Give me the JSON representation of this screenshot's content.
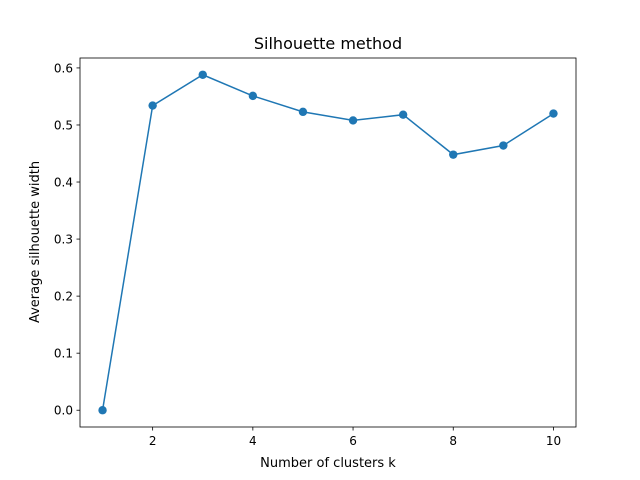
{
  "chart_data": {
    "type": "line",
    "title": "Silhouette method",
    "xlabel": "Number of clusters k",
    "ylabel": "Average silhouette width",
    "x": [
      1,
      2,
      3,
      4,
      5,
      6,
      7,
      8,
      9,
      10
    ],
    "series": [
      {
        "values": [
          0.0,
          0.534,
          0.588,
          0.551,
          0.523,
          0.508,
          0.518,
          0.448,
          0.464,
          0.52
        ],
        "color": "#1f77b4",
        "marker": "circle"
      }
    ],
    "xlim": [
      0.55,
      10.45
    ],
    "ylim": [
      -0.0294,
      0.6174
    ],
    "xticks": [
      2,
      4,
      6,
      8,
      10
    ],
    "yticks": [
      0.0,
      0.1,
      0.2,
      0.3,
      0.4,
      0.5,
      0.6
    ],
    "xtick_labels": [
      "2",
      "4",
      "6",
      "8",
      "10"
    ],
    "ytick_labels": [
      "0.0",
      "0.1",
      "0.2",
      "0.3",
      "0.4",
      "0.5",
      "0.6"
    ],
    "grid": false,
    "legend": "none"
  }
}
